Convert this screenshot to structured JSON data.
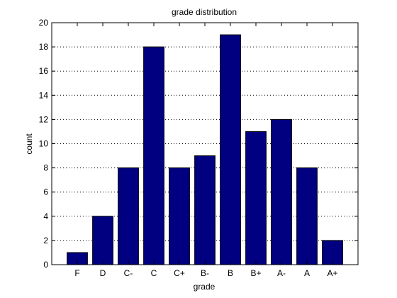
{
  "chart_data": {
    "type": "bar",
    "title": "grade distribution",
    "xlabel": "grade",
    "ylabel": "count",
    "categories": [
      "F",
      "D",
      "C-",
      "C",
      "C+",
      "B-",
      "B",
      "B+",
      "A-",
      "A",
      "A+"
    ],
    "values": [
      1,
      4,
      8,
      18,
      8,
      9,
      19,
      11,
      12,
      8,
      2
    ],
    "ylim": [
      0,
      20
    ],
    "yticks": [
      0,
      2,
      4,
      6,
      8,
      10,
      12,
      14,
      16,
      18,
      20
    ],
    "grid": "horizontal dotted",
    "legend": "none",
    "colors": {
      "bar_fill": "#000080",
      "bar_edge": "#000000",
      "background": "#ffffff"
    }
  }
}
